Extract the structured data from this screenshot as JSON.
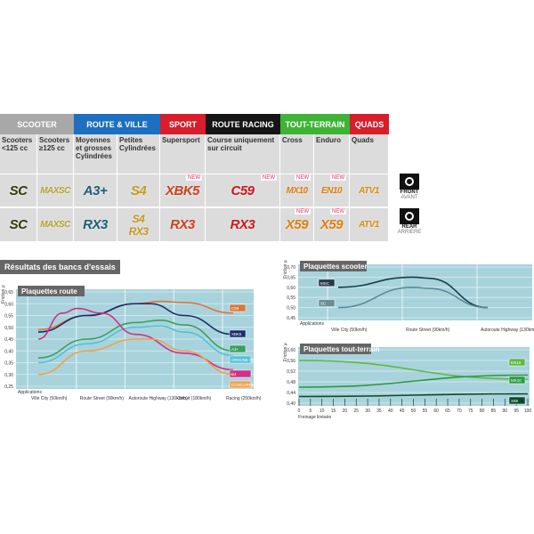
{
  "categories": [
    {
      "label": "SCOOTER",
      "color": "#a8a8a8"
    },
    {
      "label": "ROUTE & VILLE",
      "color": "#1d6fc0"
    },
    {
      "label": "SPORT",
      "color": "#d81e2a"
    },
    {
      "label": "ROUTE RACING",
      "color": "#151515"
    },
    {
      "label": "TOUT-TERRAIN",
      "color": "#3fb335"
    },
    {
      "label": "QUADS",
      "color": "#d81e2a"
    }
  ],
  "columns": [
    {
      "label": "Scooters <125 cc",
      "front": "SC",
      "rear": "SC",
      "color": "#3a3a10"
    },
    {
      "label": "Scooters ≥125 cc",
      "front": "MAXSC",
      "rear": "MAXSC",
      "color": "#b8a830"
    },
    {
      "label": "Moyennes et grosses Cylindrées",
      "front": "A3+",
      "rear": "RX3",
      "color": "#1c5e7a"
    },
    {
      "label": "Petites Cylindrées",
      "front": "S4",
      "rear": "S4 RX3",
      "color": "#c89a20"
    },
    {
      "label": "Supersport",
      "front": "XBK5",
      "rear": "RX3",
      "front_new": "NEW",
      "color": "#d04020"
    },
    {
      "label": "Course uniquement sur circuit",
      "front": "C59",
      "rear": "RX3",
      "front_new": "NEW",
      "color": "#d01818"
    },
    {
      "label": "Cross",
      "front": "MX10",
      "rear": "X59",
      "front_new": "NEW",
      "rear_new": "NEW",
      "color": "#e08010"
    },
    {
      "label": "Enduro",
      "front": "EN10",
      "rear": "X59",
      "front_new": "NEW",
      "rear_new": "NEW",
      "color": "#e08010"
    },
    {
      "label": "Quads",
      "front": "ATV1",
      "rear": "ATV1",
      "color": "#e09010"
    }
  ],
  "legend": {
    "front": "FRONT",
    "front_fr": "AVANT",
    "rear": "REAR",
    "rear_fr": "ARRIÈRE"
  },
  "section_title": "Résultats des bancs d'essais",
  "chart_data": [
    {
      "type": "line",
      "title": "Plaquettes route",
      "ylabel": "Friction μ",
      "xlabel": "Applications",
      "ylim": [
        0.25,
        0.65
      ],
      "yticks": [
        "0,65",
        "0,60",
        "0,55",
        "0,50",
        "0,45",
        "0,40",
        "0,35",
        "0,30",
        "0,25"
      ],
      "categories": [
        "Ville City (50km/h)",
        "Route Street (90km/h)",
        "Autoroute Highway (130km/h)",
        "Circuit (180km/h)",
        "Racing (250km/h)"
      ],
      "series": [
        {
          "name": "C59",
          "color": "#d9773a",
          "x": [
            0,
            1,
            2,
            2.5,
            3,
            4
          ],
          "y": [
            0.49,
            0.55,
            0.6,
            0.61,
            0.605,
            0.56
          ]
        },
        {
          "name": "XBK5",
          "color": "#1c2a6a",
          "x": [
            0,
            1,
            2,
            2.3,
            3,
            4
          ],
          "y": [
            0.48,
            0.55,
            0.6,
            0.6,
            0.55,
            0.47
          ]
        },
        {
          "name": "A3+",
          "color": "#3aa060",
          "x": [
            0,
            1,
            2,
            2.5,
            3,
            4
          ],
          "y": [
            0.37,
            0.45,
            0.52,
            0.53,
            0.51,
            0.4
          ]
        },
        {
          "name": "ORIGINE ORIGINAL",
          "color": "#50c0d8",
          "x": [
            0,
            1,
            2,
            2.5,
            3,
            4
          ],
          "y": [
            0.35,
            0.43,
            0.5,
            0.505,
            0.48,
            0.38
          ]
        },
        {
          "name": "S4",
          "color": "#d0308a",
          "x": [
            0,
            0.5,
            0.8,
            1.3,
            2,
            3,
            4
          ],
          "y": [
            0.45,
            0.56,
            0.58,
            0.56,
            0.47,
            0.39,
            0.32
          ]
        },
        {
          "name": "CONCURRENCE",
          "color": "#f0a050",
          "x": [
            0,
            1,
            2,
            2.3,
            3,
            4
          ],
          "y": [
            0.3,
            0.4,
            0.45,
            0.45,
            0.4,
            0.3
          ]
        }
      ]
    },
    {
      "type": "line",
      "title": "Plaquettes scooter",
      "ylabel": "Friction μ",
      "xlabel": "Applications",
      "ylim": [
        0.45,
        0.7
      ],
      "yticks": [
        "0,70",
        "0,65",
        "0,60",
        "0,55",
        "0,50",
        "0,45"
      ],
      "categories": [
        "Ville City (50km/h)",
        "Route Street (90km/h)",
        "Autoroute Highway (130km/h)"
      ],
      "series": [
        {
          "name": "MSC",
          "color": "#1a3a48",
          "x": [
            0,
            1,
            1.2,
            2
          ],
          "y": [
            0.6,
            0.65,
            0.645,
            0.5
          ]
        },
        {
          "name": "SC",
          "color": "#5a8a98",
          "x": [
            0,
            1,
            1.2,
            2
          ],
          "y": [
            0.5,
            0.6,
            0.595,
            0.5
          ]
        }
      ]
    },
    {
      "type": "line",
      "title": "Plaquettes tout-terrain",
      "ylabel": "Friction μ",
      "xlabel": "Freinage linéaire",
      "ylim": [
        0.4,
        0.6
      ],
      "xlim": [
        0,
        100
      ],
      "yticks": [
        "0,60",
        "0,56",
        "0,52",
        "0,48",
        "0,44",
        "0,40"
      ],
      "xticks": [
        "0",
        "5",
        "10",
        "15",
        "20",
        "25",
        "30",
        "35",
        "40",
        "45",
        "50",
        "55",
        "60",
        "65",
        "70",
        "75",
        "80",
        "85",
        "90",
        "95",
        "100"
      ],
      "series": [
        {
          "name": "EN10",
          "color": "#60b840",
          "x": [
            0,
            100
          ],
          "y": [
            0.56,
            0.49
          ]
        },
        {
          "name": "MX10",
          "color": "#2a9a40",
          "x": [
            0,
            100
          ],
          "y": [
            0.46,
            0.505
          ]
        },
        {
          "name": "X59",
          "color": "#0a4a28",
          "x": [
            0,
            100
          ],
          "y": [
            0.425,
            0.435
          ]
        }
      ]
    }
  ]
}
